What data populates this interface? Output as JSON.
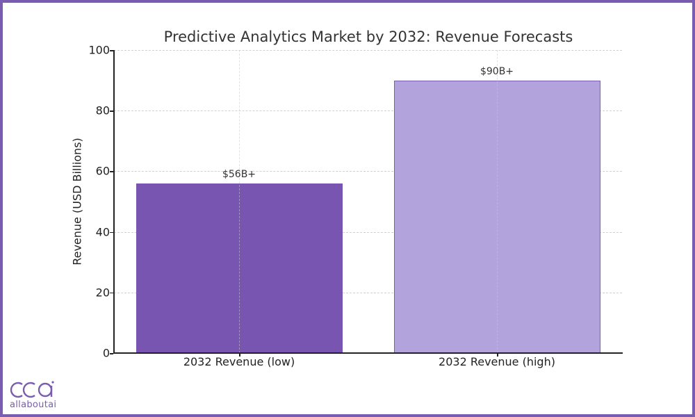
{
  "chart_data": {
    "type": "bar",
    "title": "Predictive Analytics Market by 2032: Revenue Forecasts",
    "xlabel": "",
    "ylabel": "Revenue (USD Billions)",
    "categories": [
      "2032 Revenue (low)",
      "2032 Revenue (high)"
    ],
    "values": [
      56,
      90
    ],
    "data_labels": [
      "$56B+",
      "$90B+"
    ],
    "bar_colors": [
      "#7755b0",
      "#b3a3dc"
    ],
    "ylim": [
      0,
      100
    ],
    "yticks": [
      0,
      20,
      40,
      60,
      80,
      100
    ],
    "grid": true,
    "legend": null
  },
  "branding": {
    "logo_text": "allaboutai",
    "accent_color": "#7a5cb0"
  }
}
